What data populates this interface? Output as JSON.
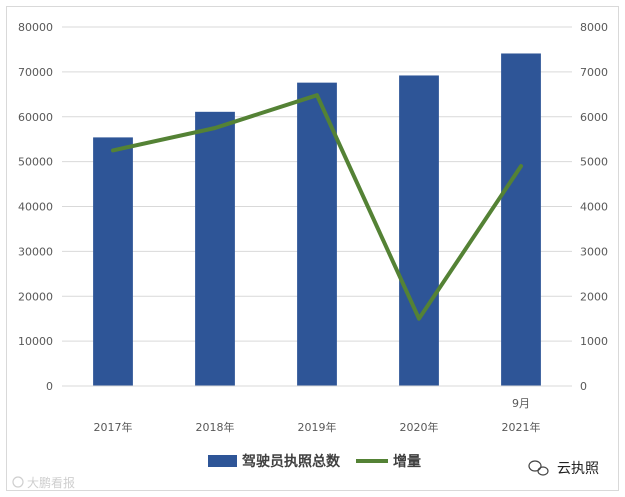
{
  "chart_data": {
    "type": "bar",
    "categories": [
      "2017年",
      "2018年",
      "2019年",
      "2020年",
      "2021年"
    ],
    "category_annotations": [
      {
        "category": "2021年",
        "text": "9月"
      }
    ],
    "series": [
      {
        "name": "驾驶员执照总数",
        "type": "bar",
        "axis": "left",
        "color": "#2e5597",
        "values": [
          55400,
          61100,
          67600,
          69200,
          74100
        ]
      },
      {
        "name": "增量",
        "type": "line",
        "axis": "right",
        "color": "#548235",
        "values": [
          5250,
          5750,
          6480,
          1500,
          4900
        ]
      }
    ],
    "y_left": {
      "min": 0,
      "max": 80000,
      "step": 10000
    },
    "y_right": {
      "min": 0,
      "max": 8000,
      "step": 1000
    },
    "grid": true,
    "legend_position": "bottom"
  },
  "watermarks": {
    "left_text": "大鹏看报",
    "right_icon": "wechat-icon",
    "right_text": "云执照"
  }
}
